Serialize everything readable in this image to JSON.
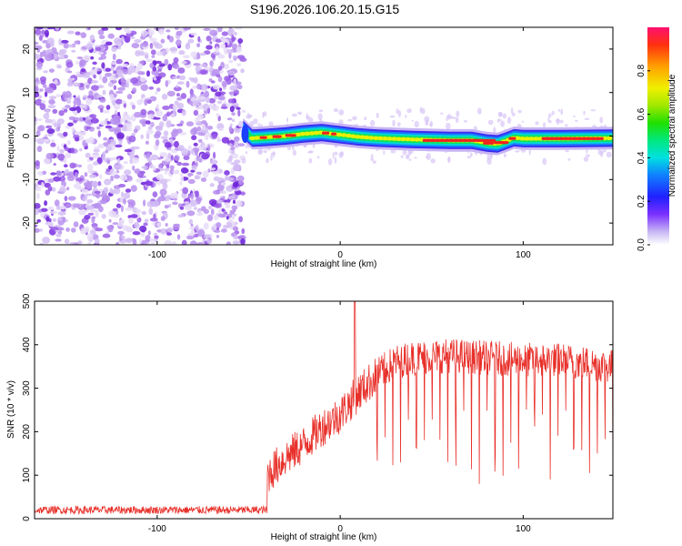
{
  "title": "S196.2026.106.20.15.G15",
  "chart_data": [
    {
      "type": "heatmap",
      "title": "S196.2026.106.20.15.G15",
      "xlabel": "Height of straight line (km)",
      "ylabel": "Frequency (Hz)",
      "xlim": [
        -167,
        149
      ],
      "ylim": [
        -25,
        25
      ],
      "xticks": [
        -100,
        0,
        100
      ],
      "yticks": [
        -20,
        -10,
        0,
        10,
        20
      ],
      "noise_region_x": [
        -167,
        -53
      ],
      "signal_start_x": -53,
      "ridge": {
        "x": [
          -53,
          -48,
          -40,
          -30,
          -20,
          -10,
          0,
          10,
          20,
          40,
          60,
          72,
          80,
          86,
          90,
          95,
          100,
          120,
          149
        ],
        "freq_hz": [
          1.5,
          -0.5,
          -0.3,
          0.0,
          0.5,
          0.8,
          0.3,
          -0.2,
          -0.5,
          -0.8,
          -1.0,
          -1.0,
          -1.6,
          -1.8,
          -1.2,
          -0.4,
          -0.6,
          -0.6,
          -0.5
        ]
      },
      "colorbar": {
        "label": "Normalized spectral amplitude",
        "range": [
          0.0,
          1.0
        ],
        "ticks": [
          "0.0",
          "0.2",
          "0.4",
          "0.6",
          "0.8"
        ]
      }
    },
    {
      "type": "line",
      "xlabel": "Height of straight line (km)",
      "ylabel": "SNR (10 * v/v)",
      "xlim": [
        -167,
        149
      ],
      "ylim": [
        0,
        500
      ],
      "xticks": [
        -100,
        0,
        100
      ],
      "yticks": [
        0,
        100,
        200,
        300,
        400,
        500
      ],
      "series": [
        {
          "name": "SNR",
          "color": "#e8302a",
          "envelope_x": [
            -167,
            -40,
            -40,
            -30,
            -20,
            -10,
            0,
            10,
            20,
            30,
            40,
            60,
            80,
            100,
            120,
            149
          ],
          "envelope_mid": [
            20,
            20,
            100,
            140,
            170,
            210,
            240,
            290,
            330,
            360,
            370,
            375,
            370,
            365,
            365,
            350
          ],
          "spike": {
            "x": 8,
            "y": 500
          },
          "dip_spacing_km": 4.3,
          "dip_start_km": 20
        }
      ]
    }
  ]
}
